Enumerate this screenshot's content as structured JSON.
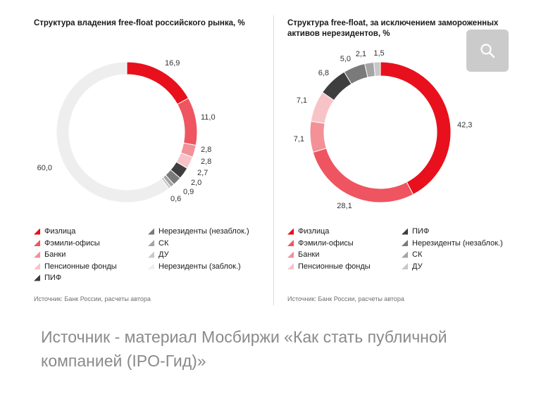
{
  "caption": "Источник - материал Мосбиржи «Как стать публичной компанией (IPO-Гид)»",
  "colors": {
    "Физлица": "#e8101d",
    "Фэмили-офисы": "#ee5560",
    "Банки": "#f39098",
    "Пенсионные фонды": "#f8c3c7",
    "ПИФ": "#3e3e3e",
    "Нерезиденты (незаблок.)": "#7a7a7a",
    "СК": "#a5a5a5",
    "ДУ": "#c8c8c8",
    "Нерезиденты (заблок.)": "#eeeeee"
  },
  "chart_data": [
    {
      "type": "pie",
      "donut": true,
      "title": "Структура владения free-float российского рынка, %",
      "source": "Источник: Банк России, расчеты автора",
      "slices": [
        {
          "label": "Физлица",
          "value": 16.9,
          "text": "16,9"
        },
        {
          "label": "Фэмили-офисы",
          "value": 11.0,
          "text": "11,0"
        },
        {
          "label": "Банки",
          "value": 2.8,
          "text": "2,8"
        },
        {
          "label": "Пенсионные фонды",
          "value": 2.8,
          "text": "2,8"
        },
        {
          "label": "ПИФ",
          "value": 2.7,
          "text": "2,7"
        },
        {
          "label": "Нерезиденты (незаблок.)",
          "value": 2.0,
          "text": "2,0"
        },
        {
          "label": "СК",
          "value": 0.9,
          "text": "0,9"
        },
        {
          "label": "ДУ",
          "value": 0.6,
          "text": "0,6"
        },
        {
          "label": "Нерезиденты (заблок.)",
          "value": 60.0,
          "text": "60,0"
        }
      ],
      "legend": [
        "Физлица",
        "Фэмили-офисы",
        "Банки",
        "Пенсионные фонды",
        "ПИФ",
        "Нерезиденты (незаблок.)",
        "СК",
        "ДУ",
        "Нерезиденты (заблок.)"
      ]
    },
    {
      "type": "pie",
      "donut": true,
      "title": "Структура free-float, за исключением замороженных активов нерезидентов, %",
      "source": "Источник: Банк России, расчеты автора",
      "slices": [
        {
          "label": "Физлица",
          "value": 42.3,
          "text": "42,3"
        },
        {
          "label": "Фэмили-офисы",
          "value": 28.1,
          "text": "28,1"
        },
        {
          "label": "Банки",
          "value": 7.1,
          "text": "7,1"
        },
        {
          "label": "Пенсионные фонды",
          "value": 7.1,
          "text": "7,1"
        },
        {
          "label": "ПИФ",
          "value": 6.8,
          "text": "6,8"
        },
        {
          "label": "Нерезиденты (незаблок.)",
          "value": 5.0,
          "text": "5,0"
        },
        {
          "label": "СК",
          "value": 2.1,
          "text": "2,1"
        },
        {
          "label": "ДУ",
          "value": 1.5,
          "text": "1,5"
        }
      ],
      "legend": [
        "Физлица",
        "Фэмили-офисы",
        "Банки",
        "Пенсионные фонды",
        "ПИФ",
        "Нерезиденты (незаблок.)",
        "СК",
        "ДУ"
      ]
    }
  ]
}
